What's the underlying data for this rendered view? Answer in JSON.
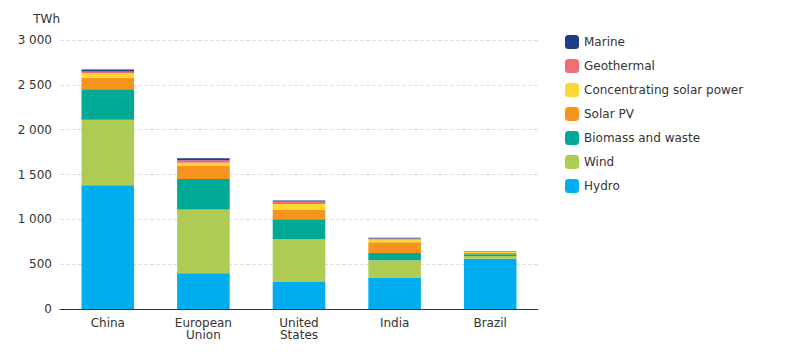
{
  "chart_data": {
    "type": "bar",
    "stacked": true,
    "grid": true,
    "legend": "right",
    "y_label": "TWh",
    "categories": [
      "China",
      "European\nUnion",
      "United\nStates",
      "India",
      "Brazil"
    ],
    "series": [
      {
        "name": "Hydro",
        "color": "#00AEEF",
        "values": [
          1380,
          400,
          300,
          350,
          560
        ]
      },
      {
        "name": "Wind",
        "color": "#AECC53",
        "values": [
          730,
          710,
          480,
          195,
          30
        ]
      },
      {
        "name": "Biomass and waste",
        "color": "#00A896",
        "values": [
          340,
          340,
          220,
          80,
          20
        ]
      },
      {
        "name": "Solar PV",
        "color": "#F7941D",
        "values": [
          130,
          150,
          110,
          120,
          15
        ]
      },
      {
        "name": "Concentrating solar power",
        "color": "#FDD835",
        "values": [
          50,
          30,
          60,
          30,
          10
        ]
      },
      {
        "name": "Geothermal",
        "color": "#F06D7A",
        "values": [
          20,
          30,
          30,
          10,
          5
        ]
      },
      {
        "name": "Marine",
        "color": "#1F3C88",
        "values": [
          20,
          20,
          10,
          10,
          5
        ]
      }
    ],
    "ylim": [
      0,
      3000
    ],
    "yticks": [
      0,
      500,
      {
        "value": 1000,
        "label": "1 000"
      },
      {
        "value": 1500,
        "label": "1 500"
      },
      {
        "value": 2000,
        "label": "2 000"
      },
      {
        "value": 2500,
        "label": "2 500"
      },
      {
        "value": 3000,
        "label": "3 000"
      }
    ]
  }
}
